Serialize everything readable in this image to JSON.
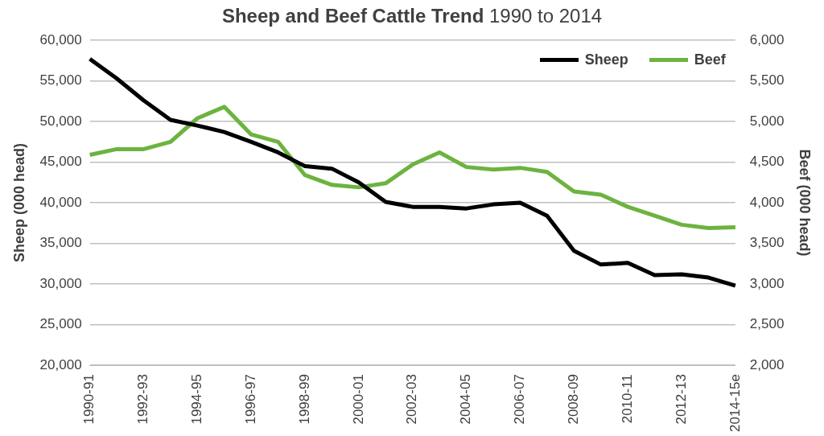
{
  "chart_data": {
    "type": "line",
    "title": "Sheep and Beef Cattle Trend",
    "subtitle": "1990 to 2014",
    "ylabel": "Sheep (000 head)",
    "y2label": "Beef (000 head)",
    "categories": [
      "1990-91",
      null,
      "1992-93",
      null,
      "1994-95",
      null,
      "1996-97",
      null,
      "1998-99",
      null,
      "2000-01",
      null,
      "2002-03",
      null,
      "2004-05",
      null,
      "2006-07",
      null,
      "2008-09",
      null,
      "2010-11",
      null,
      "2012-13",
      null,
      "2014-15e"
    ],
    "series": [
      {
        "name": "Sheep",
        "color": "#000000",
        "values": [
          57700,
          55300,
          52600,
          50200,
          49500,
          48700,
          47500,
          46200,
          44500,
          44200,
          42500,
          40100,
          39500,
          39500,
          39300,
          39800,
          40000,
          38400,
          34100,
          32400,
          32600,
          31100,
          31200,
          30800,
          29800
        ]
      },
      {
        "name": "Beef",
        "color": "#6db33f",
        "axis": "y2",
        "values": [
          4590,
          4660,
          4660,
          4750,
          5040,
          5180,
          4840,
          4750,
          4340,
          4220,
          4190,
          4240,
          4470,
          4620,
          4440,
          4410,
          4430,
          4380,
          4140,
          4100,
          3950,
          3840,
          3730,
          3690,
          3700
        ]
      }
    ],
    "ylim": [
      20000,
      60000
    ],
    "yticks": [
      {
        "value": 20000,
        "label": "20,000"
      },
      {
        "value": 25000,
        "label": "25,000"
      },
      {
        "value": 30000,
        "label": "30,000"
      },
      {
        "value": 35000,
        "label": "35,000"
      },
      {
        "value": 40000,
        "label": "40,000"
      },
      {
        "value": 45000,
        "label": "45,000"
      },
      {
        "value": 50000,
        "label": "50,000"
      },
      {
        "value": 55000,
        "label": "55,000"
      },
      {
        "value": 60000,
        "label": "60,000"
      }
    ],
    "y2lim": [
      2000,
      6000
    ],
    "y2ticks": [
      {
        "value": 2000,
        "label": "2,000"
      },
      {
        "value": 2500,
        "label": "2,500"
      },
      {
        "value": 3000,
        "label": "3,000"
      },
      {
        "value": 3500,
        "label": "3,500"
      },
      {
        "value": 4000,
        "label": "4,000"
      },
      {
        "value": 4500,
        "label": "4,500"
      },
      {
        "value": 5000,
        "label": "5,000"
      },
      {
        "value": 5500,
        "label": "5,500"
      },
      {
        "value": 6000,
        "label": "6,000"
      }
    ],
    "grid": "y",
    "legend": "top right",
    "marker": "none",
    "line_style": "solid"
  }
}
